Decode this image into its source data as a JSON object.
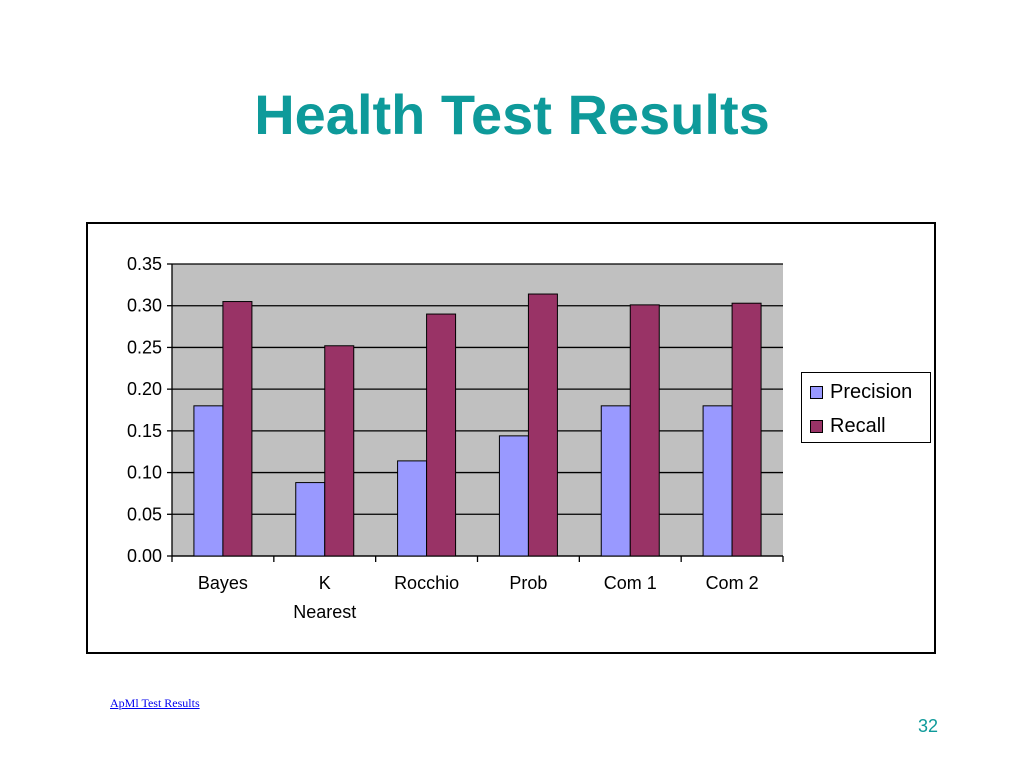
{
  "slide": {
    "title": "Health Test Results",
    "footer_link": "ApMl Test Results",
    "page_number": "32"
  },
  "chart_data": {
    "type": "bar",
    "categories": [
      "Bayes",
      "K Nearest",
      "Rocchio",
      "Prob",
      "Com 1",
      "Com 2"
    ],
    "series": [
      {
        "name": "Precision",
        "color": "#9999ff",
        "values": [
          0.18,
          0.088,
          0.114,
          0.144,
          0.18,
          0.18
        ]
      },
      {
        "name": "Recall",
        "color": "#993366",
        "values": [
          0.305,
          0.252,
          0.29,
          0.314,
          0.301,
          0.303
        ]
      }
    ],
    "yticks": [
      "0.00",
      "0.05",
      "0.10",
      "0.15",
      "0.20",
      "0.25",
      "0.30",
      "0.35"
    ],
    "ylim": [
      0,
      0.35
    ],
    "grid": true,
    "plot_background": "#c0c0c0",
    "legend_position": "right",
    "title": "",
    "xlabel": "",
    "ylabel": ""
  }
}
